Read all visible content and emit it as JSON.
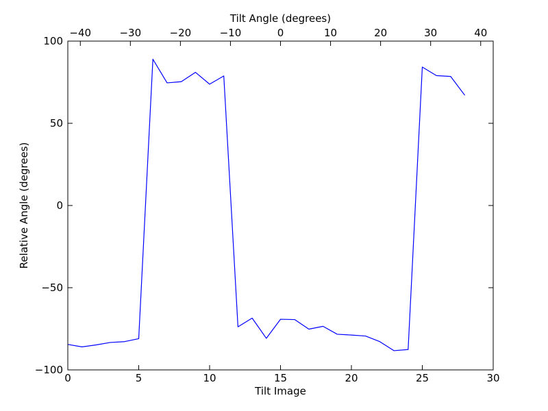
{
  "chart_data": {
    "type": "line",
    "title": "",
    "xlabel": "Tilt Image",
    "ylabel": "Relative Angle (degrees)",
    "x2label": "Tilt Angle (degrees)",
    "xlim": [
      0,
      30
    ],
    "ylim": [
      -100,
      100
    ],
    "x2lim": [
      -42.5,
      42.5
    ],
    "xticks": [
      0,
      5,
      10,
      15,
      20,
      25,
      30
    ],
    "xtick_labels": [
      "0",
      "5",
      "10",
      "15",
      "20",
      "25",
      "30"
    ],
    "yticks": [
      -100,
      -50,
      0,
      50,
      100
    ],
    "ytick_labels": [
      "−100",
      "−50",
      "0",
      "50",
      "100"
    ],
    "x2ticks": [
      -40,
      -30,
      -20,
      -10,
      0,
      10,
      20,
      30,
      40
    ],
    "x2tick_labels": [
      "−40",
      "−30",
      "−20",
      "−10",
      "0",
      "10",
      "20",
      "30",
      "40"
    ],
    "grid": false,
    "legend": "none",
    "series": [
      {
        "color": "#0000ff",
        "x": [
          0,
          1,
          2,
          3,
          4,
          5,
          6,
          7,
          8,
          9,
          10,
          11,
          12,
          13,
          14,
          15,
          16,
          17,
          18,
          19,
          20,
          21,
          22,
          23,
          24,
          25,
          26,
          27,
          28
        ],
        "values": [
          -84.5,
          -86.0,
          -84.8,
          -83.3,
          -82.8,
          -81.0,
          89.0,
          74.6,
          75.3,
          81.0,
          73.8,
          78.8,
          -73.8,
          -68.5,
          -80.8,
          -69.2,
          -69.4,
          -75.2,
          -73.5,
          -78.3,
          -78.8,
          -79.4,
          -82.8,
          -88.3,
          -87.6,
          84.2,
          79.0,
          78.5,
          67.0
        ]
      }
    ]
  }
}
